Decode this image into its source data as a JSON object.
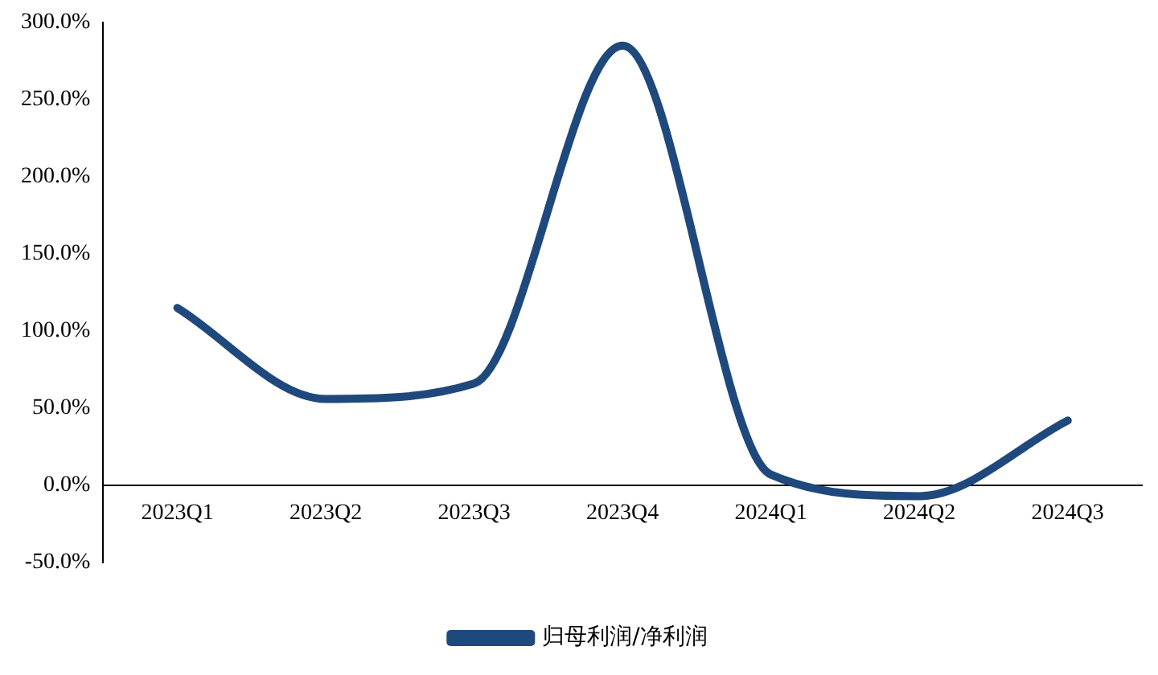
{
  "chart_data": {
    "type": "line",
    "categories": [
      "2023Q1",
      "2023Q2",
      "2023Q3",
      "2023Q4",
      "2024Q1",
      "2024Q2",
      "2024Q3"
    ],
    "series": [
      {
        "name": "归母利润/净利润",
        "color": "#1f497d",
        "values": [
          115,
          56,
          66,
          285,
          7,
          -7,
          42
        ]
      }
    ],
    "ylim": [
      -50,
      300
    ],
    "yticks": [
      {
        "value": -50,
        "label": "-50.0%"
      },
      {
        "value": 0,
        "label": "0.0%"
      },
      {
        "value": 50,
        "label": "50.0%"
      },
      {
        "value": 100,
        "label": "100.0%"
      },
      {
        "value": 150,
        "label": "150.0%"
      },
      {
        "value": 200,
        "label": "200.0%"
      },
      {
        "value": 250,
        "label": "250.0%"
      },
      {
        "value": 300,
        "label": "300.0%"
      }
    ],
    "grid": false,
    "legend": "bottom",
    "marker": "none",
    "line_style": "solid"
  }
}
